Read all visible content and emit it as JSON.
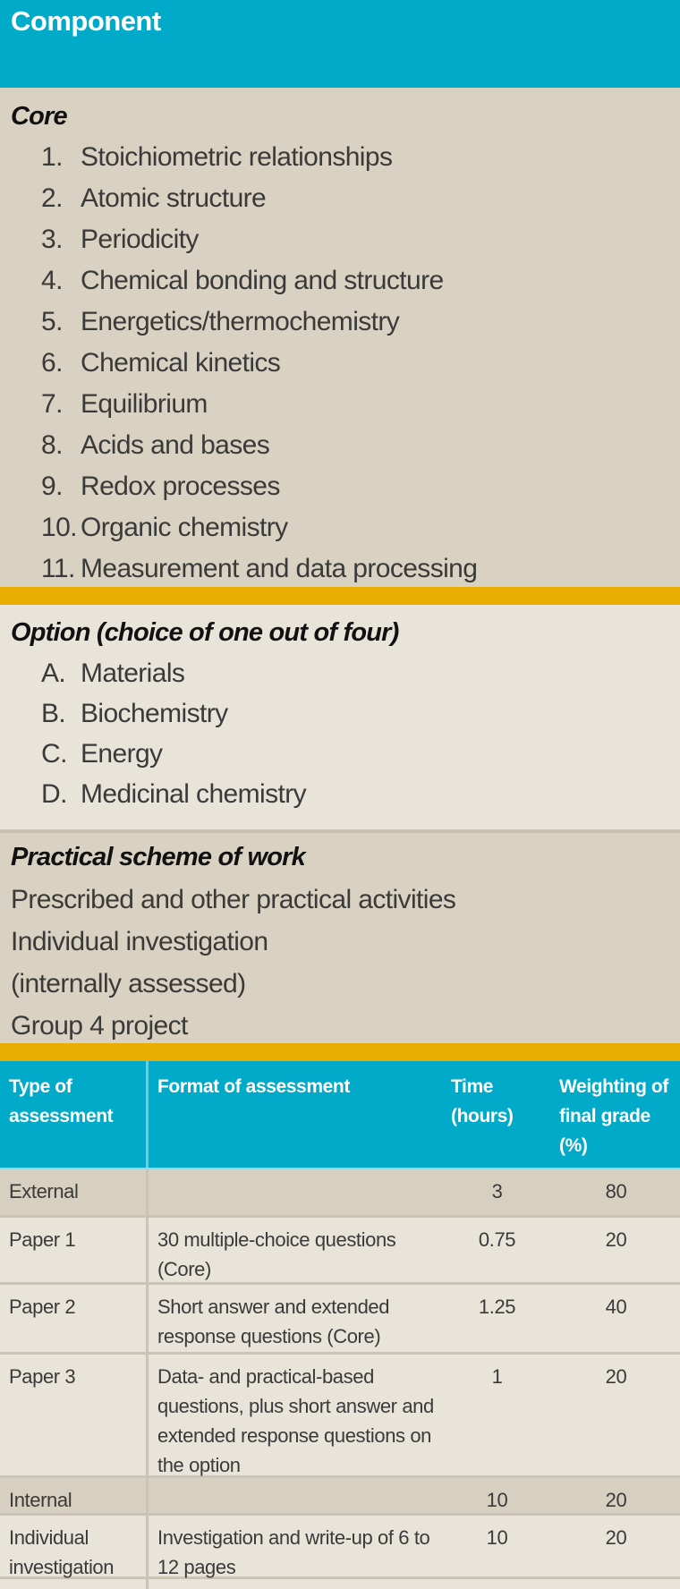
{
  "header": {
    "title": "Component"
  },
  "core": {
    "title": "Core",
    "items": [
      {
        "num": "1.",
        "label": "Stoichiometric relationships"
      },
      {
        "num": "2.",
        "label": "Atomic structure"
      },
      {
        "num": "3.",
        "label": "Periodicity"
      },
      {
        "num": "4.",
        "label": "Chemical bonding and structure"
      },
      {
        "num": "5.",
        "label": "Energetics/thermochemistry"
      },
      {
        "num": "6.",
        "label": "Chemical kinetics"
      },
      {
        "num": "7.",
        "label": "Equilibrium"
      },
      {
        "num": "8.",
        "label": "Acids and bases"
      },
      {
        "num": "9.",
        "label": "Redox processes"
      },
      {
        "num": "10.",
        "label": "Organic chemistry"
      },
      {
        "num": "11.",
        "label": "Measurement and data processing"
      }
    ]
  },
  "option": {
    "title": "Option (choice of one out of four)",
    "items": [
      {
        "num": "A.",
        "label": "Materials"
      },
      {
        "num": "B.",
        "label": "Biochemistry"
      },
      {
        "num": "C.",
        "label": "Energy"
      },
      {
        "num": "D.",
        "label": "Medicinal chemistry"
      }
    ]
  },
  "practical": {
    "title": "Practical scheme of work",
    "lines": [
      "Prescribed and other practical activities",
      "Individual investigation",
      "(internally assessed)",
      "Group 4 project"
    ]
  },
  "table": {
    "headers": [
      "Type of assessment",
      "Format of assessment",
      "Time (hours)",
      "Weighting of final grade (%)"
    ],
    "rows": [
      {
        "type": "External",
        "format": "",
        "time": "3",
        "weight": "80",
        "dark": true
      },
      {
        "type": "Paper 1",
        "format": "30 multiple-choice questions (Core)",
        "time": "0.75",
        "weight": "20"
      },
      {
        "type": "Paper 2",
        "format": "Short answer and extended response questions (Core)",
        "time": "1.25",
        "weight": "40"
      },
      {
        "type": "Paper 3",
        "format": "Data- and practical-based questions, plus short answer and extended response questions on the option",
        "time": "1",
        "weight": "20"
      },
      {
        "type": "Internal",
        "format": "",
        "time": "10",
        "weight": "20",
        "dark": true
      },
      {
        "type": "Individual investigation",
        "format": "Investigation and write-up of 6 to 12 pages",
        "time": "10",
        "weight": "20"
      }
    ]
  },
  "colors": {
    "header": "#00aac8",
    "band": "#e8ad00",
    "core_bg": "#d9d2c2",
    "option_bg": "#e9e4d9"
  }
}
